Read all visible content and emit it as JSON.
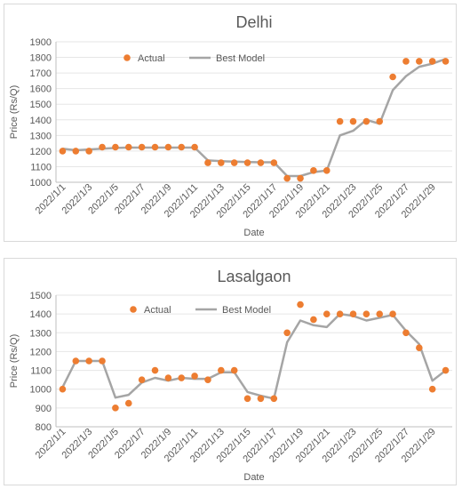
{
  "chart_data": [
    {
      "type": "line",
      "title": "Delhi",
      "xlabel": "Date",
      "ylabel": "Price (Rs/Q)",
      "ylim": [
        1000,
        1900
      ],
      "yticks": [
        "1000",
        "1100",
        "1200",
        "1300",
        "1400",
        "1500",
        "1600",
        "1700",
        "1800",
        "1900"
      ],
      "x": [
        "2022/1/1",
        "2022/1/2",
        "2022/1/3",
        "2022/1/4",
        "2022/1/5",
        "2022/1/6",
        "2022/1/7",
        "2022/1/8",
        "2022/1/9",
        "2022/1/10",
        "2022/1/11",
        "2022/1/12",
        "2022/1/13",
        "2022/1/14",
        "2022/1/15",
        "2022/1/16",
        "2022/1/17",
        "2022/1/18",
        "2022/1/19",
        "2022/1/20",
        "2022/1/21",
        "2022/1/22",
        "2022/1/23",
        "2022/1/24",
        "2022/1/25",
        "2022/1/26",
        "2022/1/27",
        "2022/1/28",
        "2022/1/29",
        "2022/1/30"
      ],
      "xtick_labels": [
        "2022/1/1",
        "2022/1/3",
        "2022/1/5",
        "2022/1/7",
        "2022/1/9",
        "2022/1/11",
        "2022/1/13",
        "2022/1/15",
        "2022/1/17",
        "2022/1/19",
        "2022/1/21",
        "2022/1/23",
        "2022/1/25",
        "2022/1/27",
        "2022/1/29"
      ],
      "legend_position": "top",
      "series": [
        {
          "name": "Actual",
          "kind": "markers",
          "color": "#ED7D31",
          "values": [
            1200,
            1200,
            1200,
            1225,
            1225,
            1225,
            1225,
            1225,
            1225,
            1225,
            1225,
            1125,
            1125,
            1125,
            1125,
            1125,
            1125,
            1025,
            1025,
            1075,
            1075,
            1390,
            1390,
            1390,
            1390,
            1675,
            1775,
            1775,
            1775,
            1775
          ]
        },
        {
          "name": "Best Model",
          "kind": "line",
          "color": "#A5A5A5",
          "values": [
            1215,
            1205,
            1210,
            1215,
            1220,
            1222,
            1222,
            1222,
            1222,
            1222,
            1222,
            1140,
            1135,
            1132,
            1130,
            1128,
            1128,
            1040,
            1040,
            1065,
            1075,
            1300,
            1330,
            1400,
            1375,
            1590,
            1680,
            1740,
            1760,
            1790
          ]
        }
      ]
    },
    {
      "type": "line",
      "title": "Lasalgaon",
      "xlabel": "Date",
      "ylabel": "Price (Rs/Q)",
      "ylim": [
        800,
        1500
      ],
      "yticks": [
        "800",
        "900",
        "1000",
        "1100",
        "1200",
        "1300",
        "1400",
        "1500"
      ],
      "x": [
        "2022/1/1",
        "2022/1/2",
        "2022/1/3",
        "2022/1/4",
        "2022/1/5",
        "2022/1/6",
        "2022/1/7",
        "2022/1/8",
        "2022/1/9",
        "2022/1/10",
        "2022/1/11",
        "2022/1/12",
        "2022/1/13",
        "2022/1/14",
        "2022/1/15",
        "2022/1/16",
        "2022/1/17",
        "2022/1/18",
        "2022/1/19",
        "2022/1/20",
        "2022/1/21",
        "2022/1/22",
        "2022/1/23",
        "2022/1/24",
        "2022/1/25",
        "2022/1/26",
        "2022/1/27",
        "2022/1/28",
        "2022/1/29",
        "2022/1/30"
      ],
      "xtick_labels": [
        "2022/1/1",
        "2022/1/3",
        "2022/1/5",
        "2022/1/7",
        "2022/1/9",
        "2022/1/11",
        "2022/1/13",
        "2022/1/15",
        "2022/1/17",
        "2022/1/19",
        "2022/1/21",
        "2022/1/23",
        "2022/1/25",
        "2022/1/27",
        "2022/1/29"
      ],
      "legend_position": "top",
      "series": [
        {
          "name": "Actual",
          "kind": "markers",
          "color": "#ED7D31",
          "values": [
            1000,
            1150,
            1150,
            1150,
            900,
            925,
            1050,
            1100,
            1060,
            1060,
            1070,
            1050,
            1100,
            1100,
            950,
            950,
            950,
            1300,
            1450,
            1370,
            1400,
            1400,
            1400,
            1400,
            1400,
            1400,
            1300,
            1220,
            1000,
            1100
          ]
        },
        {
          "name": "Best Model",
          "kind": "line",
          "color": "#A5A5A5",
          "values": [
            1010,
            1150,
            1150,
            1150,
            955,
            970,
            1035,
            1060,
            1045,
            1060,
            1055,
            1055,
            1090,
            1090,
            985,
            965,
            950,
            1250,
            1365,
            1340,
            1330,
            1400,
            1390,
            1365,
            1380,
            1395,
            1310,
            1240,
            1045,
            1100
          ]
        }
      ]
    }
  ]
}
